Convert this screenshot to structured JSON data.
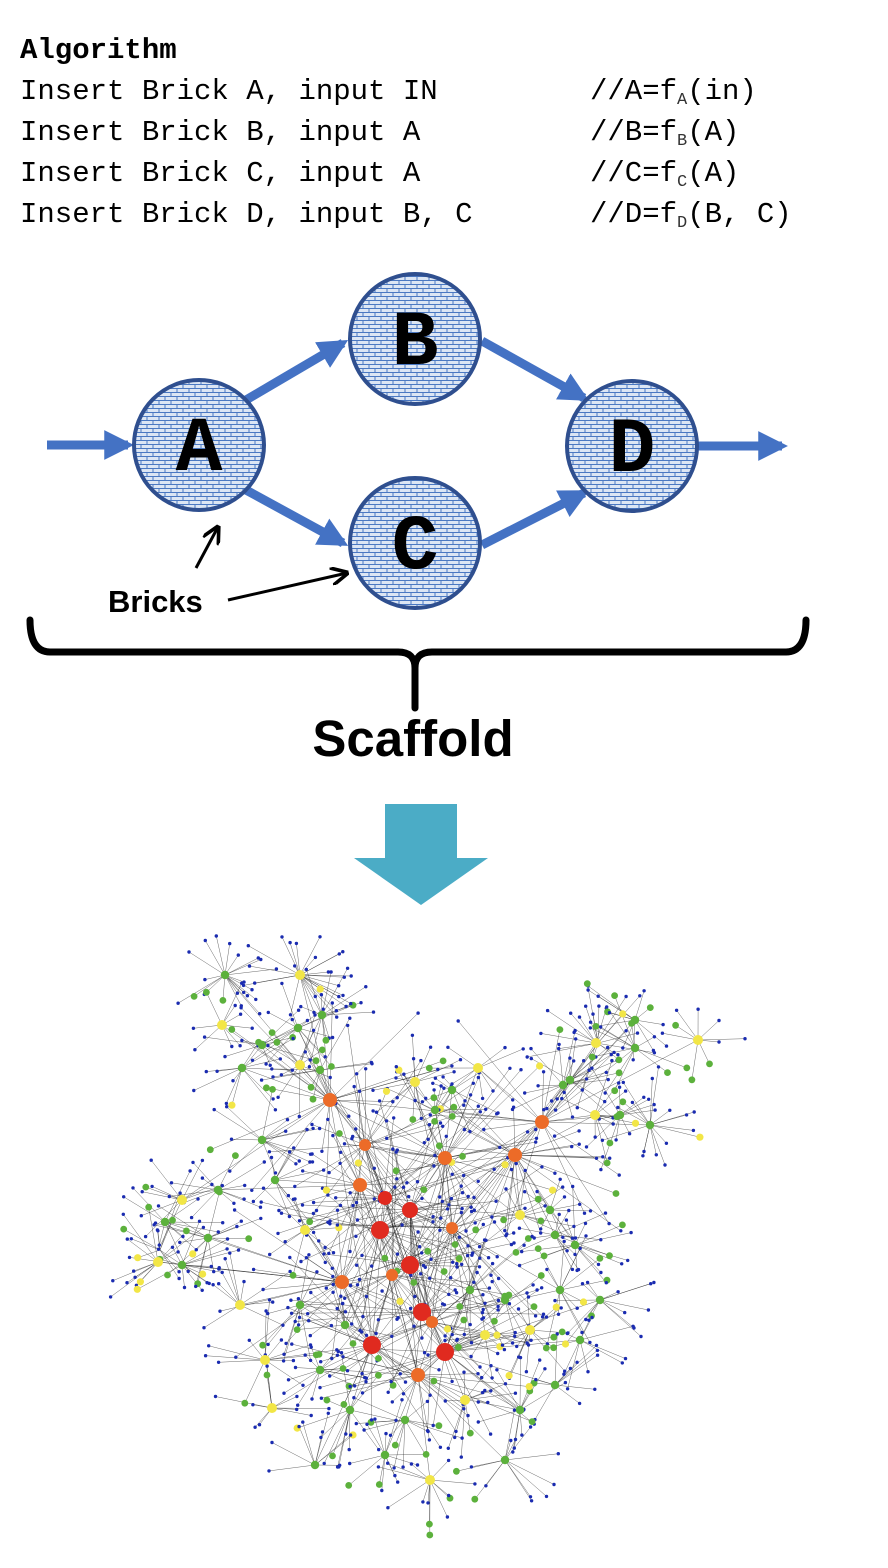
{
  "algorithm": {
    "title": "Algorithm",
    "lines": [
      {
        "command": "Insert Brick A, input IN",
        "comment_prefix": "//A=f",
        "comment_sub": "A",
        "comment_suffix": "(in)"
      },
      {
        "command": "Insert Brick B, input A",
        "comment_prefix": "//B=f",
        "comment_sub": "B",
        "comment_suffix": "(A)"
      },
      {
        "command": "Insert Brick C, input A",
        "comment_prefix": "//C=f",
        "comment_sub": "C",
        "comment_suffix": "(A)"
      },
      {
        "command": "Insert Brick D, input B, C",
        "comment_prefix": "//D=f",
        "comment_sub": "D",
        "comment_suffix": "(B, C)"
      }
    ]
  },
  "scaffold": {
    "nodes": [
      {
        "id": "A",
        "label": "A"
      },
      {
        "id": "B",
        "label": "B"
      },
      {
        "id": "C",
        "label": "C"
      },
      {
        "id": "D",
        "label": "D"
      }
    ],
    "edges": [
      {
        "from": "A",
        "to": "B"
      },
      {
        "from": "A",
        "to": "C"
      },
      {
        "from": "B",
        "to": "D"
      },
      {
        "from": "C",
        "to": "D"
      }
    ],
    "bricks_label": "Bricks",
    "scaffold_label": "Scaffold"
  },
  "colors": {
    "node_stroke": "#2f4f8f",
    "node_fill": "#dce6f4",
    "brick_line": "#4a78c2",
    "arrow": "#4472c4",
    "down_arrow": "#4bacc6",
    "net_blue": "#1a2bb0",
    "net_green": "#5cb13c",
    "net_yellow": "#f2e646",
    "net_orange": "#ec6b28",
    "net_red": "#e02a1f"
  }
}
